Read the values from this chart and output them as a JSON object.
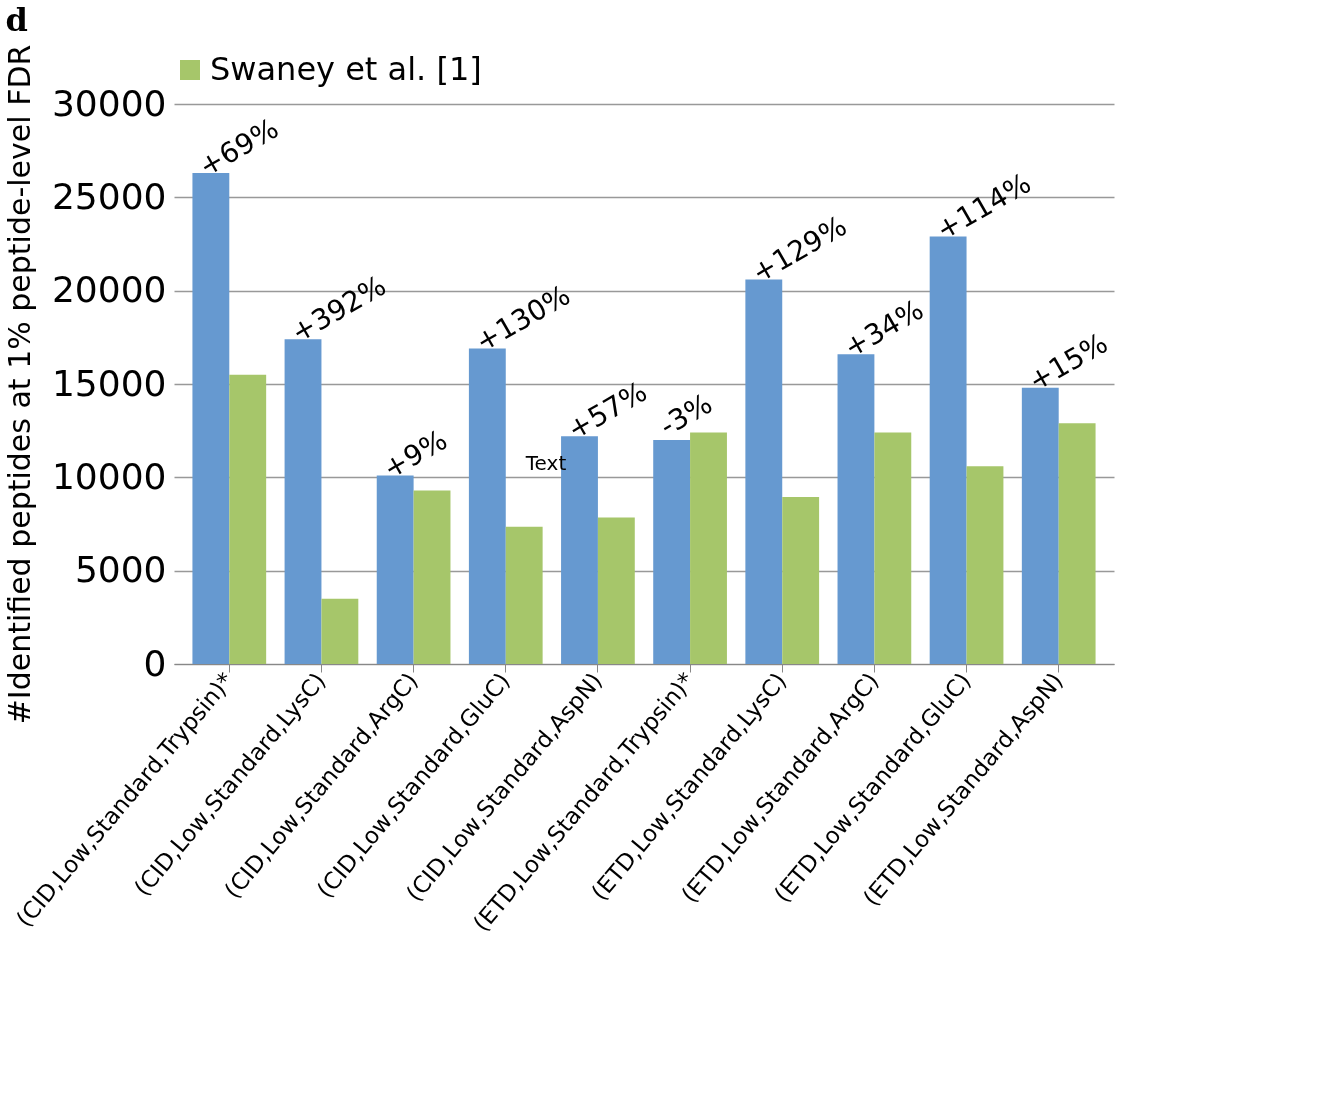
{
  "chart_data": {
    "type": "bar",
    "title": "d",
    "ylabel": "#Identified peptides at 1% peptide-level FDR",
    "categories": [
      "(CID,Low,Standard,Trypsin)*",
      "(CID,Low,Standard,LysC)",
      "(CID,Low,Standard,ArgC)",
      "(CID,Low,Standard,GluC)",
      "(CID,Low,Standard,AspN)",
      "(ETD,Low,Standard,Trypsin)*",
      "(ETD,Low,Standard,LysC)",
      "(ETD,Low,Standard,ArgC)",
      "(ETD,Low,Standard,GluC)",
      "(ETD,Low,Standard,AspN)"
    ],
    "series": [
      {
        "color": "#6699d0",
        "values": [
          26300,
          17400,
          10100,
          16900,
          12200,
          12000,
          20600,
          16600,
          22900,
          14800
        ]
      },
      {
        "name": "Swaney et al. [1]",
        "color": "#a6c66a",
        "values": [
          15500,
          3500,
          9300,
          7350,
          7850,
          12400,
          8950,
          12400,
          10600,
          12900
        ]
      }
    ],
    "ylim": [
      0,
      30000
    ],
    "yticks": [
      0,
      5000,
      10000,
      15000,
      20000,
      25000,
      30000
    ],
    "grid": "y",
    "legend": "top",
    "annotations": [
      {
        "text": "+69%",
        "x": "(CID,Low,Standard,Trypsin)*",
        "y": 26300
      },
      {
        "text": "+392%",
        "x": "(CID,Low,Standard,LysC)",
        "y": 17400
      },
      {
        "text": "+9%",
        "x": "(CID,Low,Standard,ArgC)",
        "y": 10100
      },
      {
        "text": "+130%",
        "x": "(CID,Low,Standard,GluC)",
        "y": 16900
      },
      {
        "text": "+57%",
        "x": "(CID,Low,Standard,AspN)",
        "y": 12200
      },
      {
        "text": "-3%",
        "x": "(ETD,Low,Standard,Trypsin)*",
        "y": 12400
      },
      {
        "text": "+129%",
        "x": "(ETD,Low,Standard,LysC)",
        "y": 20600
      },
      {
        "text": "+34%",
        "x": "(ETD,Low,Standard,ArgC)",
        "y": 16600
      },
      {
        "text": "+114%",
        "x": "(ETD,Low,Standard,GluC)",
        "y": 22900
      },
      {
        "text": "+15%",
        "x": "(ETD,Low,Standard,AspN)",
        "y": 14800
      },
      "Text"
    ]
  }
}
